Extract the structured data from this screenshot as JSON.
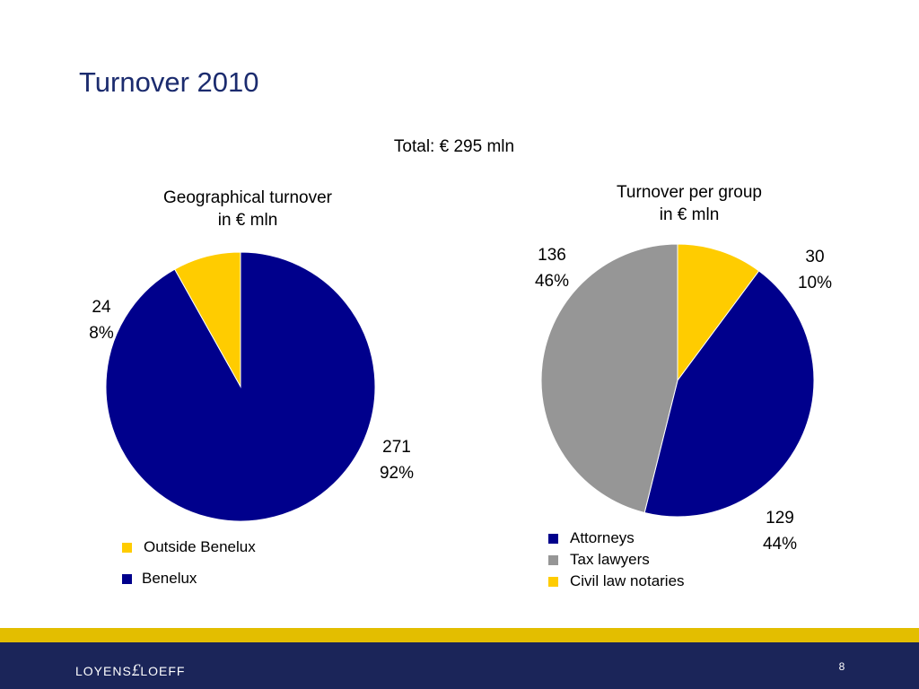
{
  "slide": {
    "title": "Turnover 2010",
    "total": "Total: € 295 mln",
    "page_number": "8",
    "logo": {
      "left": "LOYENS",
      "mark": "£",
      "right": "LOEFF"
    }
  },
  "colors": {
    "navy": "#00008c",
    "gold": "#ffcc00",
    "grey": "#969696",
    "title_blue": "#1b2b6e",
    "footer_bar": "#1b2559",
    "footer_stripe": "#e3be00"
  },
  "chart_data": [
    {
      "type": "pie",
      "title_lines": [
        "Geographical turnover",
        "in € mln"
      ],
      "unit": "€ mln",
      "start_value_offset": 24,
      "slices": [
        {
          "name": "Outside Benelux",
          "value": 24,
          "percent": "8%",
          "color": "#ffcc00",
          "label_value": "24"
        },
        {
          "name": "Benelux",
          "value": 271,
          "percent": "92%",
          "color": "#00008c",
          "label_value": "271"
        }
      ],
      "legend": [
        {
          "label": "Outside Benelux",
          "color": "#ffcc00"
        },
        {
          "label": "Benelux",
          "color": "#00008c"
        }
      ]
    },
    {
      "type": "pie",
      "title_lines": [
        "Turnover per group",
        "in € mln"
      ],
      "unit": "€ mln",
      "start_value_offset": 0,
      "slices": [
        {
          "name": "Civil law notaries",
          "value": 30,
          "percent": "10%",
          "color": "#ffcc00",
          "label_value": "30"
        },
        {
          "name": "Attorneys",
          "value": 129,
          "percent": "44%",
          "color": "#00008c",
          "label_value": "129"
        },
        {
          "name": "Tax lawyers",
          "value": 136,
          "percent": "46%",
          "color": "#969696",
          "label_value": "136"
        }
      ],
      "legend": [
        {
          "label": "Attorneys",
          "color": "#00008c"
        },
        {
          "label": "Tax lawyers",
          "color": "#969696"
        },
        {
          "label": "Civil law notaries",
          "color": "#ffcc00"
        }
      ]
    }
  ]
}
